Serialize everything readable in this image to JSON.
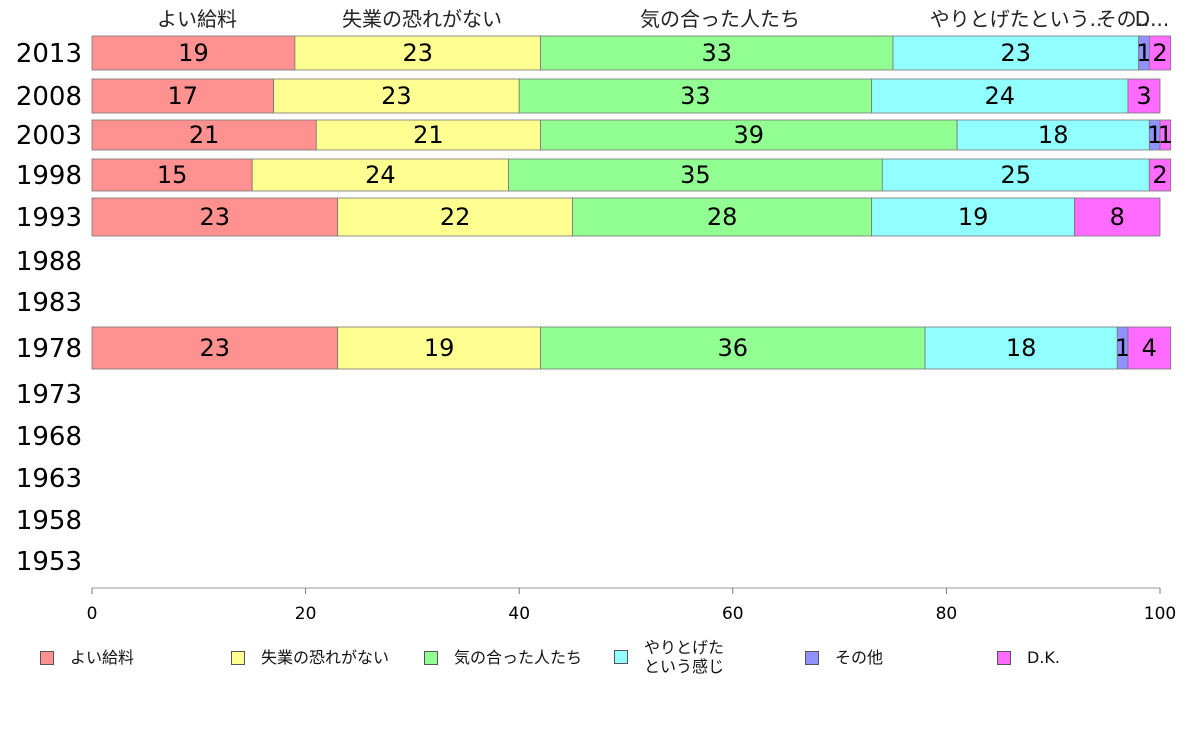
{
  "chart_data": {
    "type": "bar",
    "orientation": "horizontal",
    "stacked": true,
    "categories": [
      "2013",
      "2008",
      "2003",
      "1998",
      "1993",
      "1988",
      "1983",
      "1978",
      "1973",
      "1968",
      "1963",
      "1958",
      "1953"
    ],
    "series": [
      {
        "name": "よい給料",
        "color": "#ff9191",
        "values": [
          19,
          17,
          21,
          15,
          23,
          null,
          null,
          23,
          null,
          null,
          null,
          null,
          null
        ]
      },
      {
        "name": "失業の恐れがない",
        "color": "#ffff91",
        "values": [
          23,
          23,
          21,
          24,
          22,
          null,
          null,
          19,
          null,
          null,
          null,
          null,
          null
        ]
      },
      {
        "name": "気の合った人たち",
        "color": "#91ff91",
        "values": [
          33,
          33,
          39,
          35,
          28,
          null,
          null,
          36,
          null,
          null,
          null,
          null,
          null
        ]
      },
      {
        "name": "やりとげたという感じ",
        "color": "#91ffff",
        "values": [
          23,
          24,
          18,
          25,
          19,
          null,
          null,
          18,
          null,
          null,
          null,
          null,
          null
        ]
      },
      {
        "name": "その他",
        "color": "#9191ff",
        "values": [
          1,
          0,
          1,
          0,
          0,
          null,
          null,
          1,
          null,
          null,
          null,
          null,
          null
        ]
      },
      {
        "name": "D.K.",
        "color": "#ff6bff",
        "values": [
          2,
          3,
          1,
          2,
          8,
          null,
          null,
          4,
          null,
          null,
          null,
          null,
          null
        ]
      }
    ],
    "column_headers": [
      "よい給料",
      "失業の恐れがない",
      "気の合った人たち",
      "やりとげたという..",
      "その..",
      "D..."
    ],
    "x_ticks": [
      "0",
      "20",
      "40",
      "60",
      "80",
      "100"
    ],
    "xlim": [
      0,
      100
    ],
    "grid": false,
    "legend_position": "bottom"
  },
  "legend": [
    {
      "label": "よい給料",
      "color": "#ff9191"
    },
    {
      "label": "失業の恐れがない",
      "color": "#ffff91"
    },
    {
      "label": "気の合った人たち",
      "color": "#91ff91"
    },
    {
      "label": "やりとげた\nという感じ",
      "color": "#91ffff"
    },
    {
      "label": "その他",
      "color": "#9191ff"
    },
    {
      "label": "D.K.",
      "color": "#ff6bff"
    }
  ]
}
